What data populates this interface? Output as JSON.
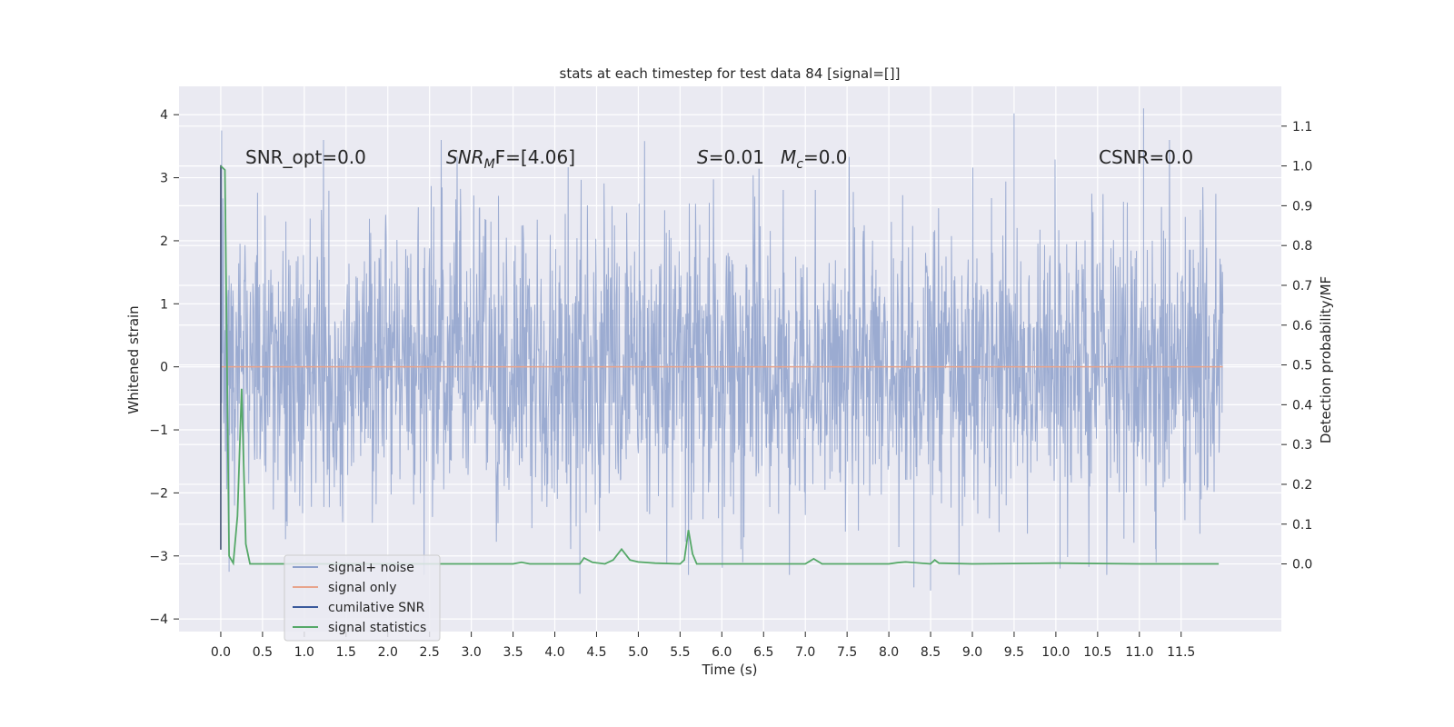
{
  "chart_data": {
    "type": "line",
    "title": "stats at each timestep for test data 84 [signal=[]]",
    "xlabel": "Time (s)",
    "ylabel_left": "Whitened strain",
    "ylabel_right": "Detection probability/MF",
    "xlim": [
      -0.5,
      12.7
    ],
    "ylim_left": [
      -4.2,
      4.45
    ],
    "ylim_right": [
      -0.17,
      1.2
    ],
    "x_ticks": [
      0.0,
      0.5,
      1.0,
      1.5,
      2.0,
      2.5,
      3.0,
      3.5,
      4.0,
      4.5,
      5.0,
      5.5,
      6.0,
      6.5,
      7.0,
      7.5,
      8.0,
      8.5,
      9.0,
      9.5,
      10.0,
      10.5,
      11.0,
      11.5
    ],
    "x_tick_labels": [
      "0.0",
      "0.5",
      "1.0",
      "1.5",
      "2.0",
      "2.5",
      "3.0",
      "3.5",
      "4.0",
      "4.5",
      "5.0",
      "5.5",
      "6.0",
      "6.5",
      "7.0",
      "7.5",
      "8.0",
      "8.5",
      "9.0",
      "9.5",
      "10.0",
      "10.5",
      "11.0",
      "11.5"
    ],
    "y_ticks_left": [
      -4,
      -3,
      -2,
      -1,
      0,
      1,
      2,
      3,
      4
    ],
    "y_tick_labels_left": [
      "−4",
      "−3",
      "−2",
      "−1",
      "0",
      "1",
      "2",
      "3",
      "4"
    ],
    "y_ticks_right": [
      0.0,
      0.1,
      0.2,
      0.3,
      0.4,
      0.5,
      0.6,
      0.7,
      0.8,
      0.9,
      1.0,
      1.1
    ],
    "y_tick_labels_right": [
      "0.0",
      "0.1",
      "0.2",
      "0.3",
      "0.4",
      "0.5",
      "0.6",
      "0.7",
      "0.8",
      "0.9",
      "1.0",
      "1.1"
    ],
    "grid": true,
    "legend_position": "lower-left",
    "legend": [
      {
        "label": "signal+ noise",
        "color": "#8da0cb"
      },
      {
        "label": "signal only",
        "color": "#e8a48c"
      },
      {
        "label": "cumilative SNR",
        "color": "#3a5a9c"
      },
      {
        "label": "signal statistics",
        "color": "#55a868"
      }
    ],
    "annotations": {
      "snr_opt": "SNR_opt=0.0",
      "snr_mf_main": "SNR",
      "snr_mf_sub": "M",
      "snr_mf_rest": "F=[4.06]",
      "s_var": "S",
      "s_val": "=0.01",
      "mc_var": "M",
      "mc_sub": "c",
      "mc_val": "=0.0",
      "csnr": "CSNR=0.0"
    },
    "series": [
      {
        "name": "signal+ noise",
        "axis": "left",
        "kind": "noise",
        "x_range": [
          0.0,
          12.0
        ],
        "envelope": {
          "typical_low": -2.0,
          "typical_high": 2.0
        },
        "notable_peaks": [
          [
            0.01,
            3.75
          ],
          [
            11.05,
            4.1
          ],
          [
            9.5,
            4.02
          ],
          [
            4.3,
            -3.6
          ],
          [
            0.1,
            -3.25
          ],
          [
            8.3,
            -3.5
          ],
          [
            8.5,
            -3.55
          ],
          [
            6.25,
            -3.1
          ],
          [
            10.05,
            -3.2
          ],
          [
            11.2,
            -3.1
          ]
        ]
      },
      {
        "name": "signal only",
        "axis": "left",
        "x": [
          0.0,
          12.0
        ],
        "y": [
          0.0,
          0.0
        ]
      },
      {
        "name": "cumilative SNR",
        "axis": "left",
        "x": [
          0.0,
          0.0
        ],
        "y": [
          -2.9,
          3.2
        ]
      },
      {
        "name": "signal statistics",
        "axis": "right",
        "x": [
          0.0,
          0.05,
          0.1,
          0.15,
          0.2,
          0.25,
          0.3,
          0.35,
          0.4,
          0.5,
          1.0,
          2.0,
          3.0,
          3.5,
          3.6,
          3.7,
          4.0,
          4.3,
          4.35,
          4.45,
          4.6,
          4.7,
          4.8,
          4.9,
          5.0,
          5.2,
          5.5,
          5.55,
          5.6,
          5.65,
          5.7,
          5.8,
          6.5,
          7.0,
          7.1,
          7.2,
          7.5,
          8.0,
          8.1,
          8.2,
          8.5,
          8.55,
          8.6,
          9.0,
          10.0,
          11.0,
          11.95
        ],
        "y": [
          1.0,
          0.99,
          0.02,
          0.002,
          0.12,
          0.44,
          0.05,
          0.0,
          0.0,
          0.0,
          0.0,
          0.0,
          0.0,
          0.0,
          0.004,
          0.0,
          0.0,
          0.0,
          0.015,
          0.004,
          0.0,
          0.01,
          0.037,
          0.01,
          0.005,
          0.002,
          0.0,
          0.01,
          0.085,
          0.025,
          0.0,
          0.0,
          0.0,
          0.0,
          0.013,
          0.0,
          0.0,
          0.0,
          0.003,
          0.005,
          0.0,
          0.01,
          0.002,
          0.0,
          0.002,
          0.0,
          0.0
        ]
      }
    ]
  }
}
